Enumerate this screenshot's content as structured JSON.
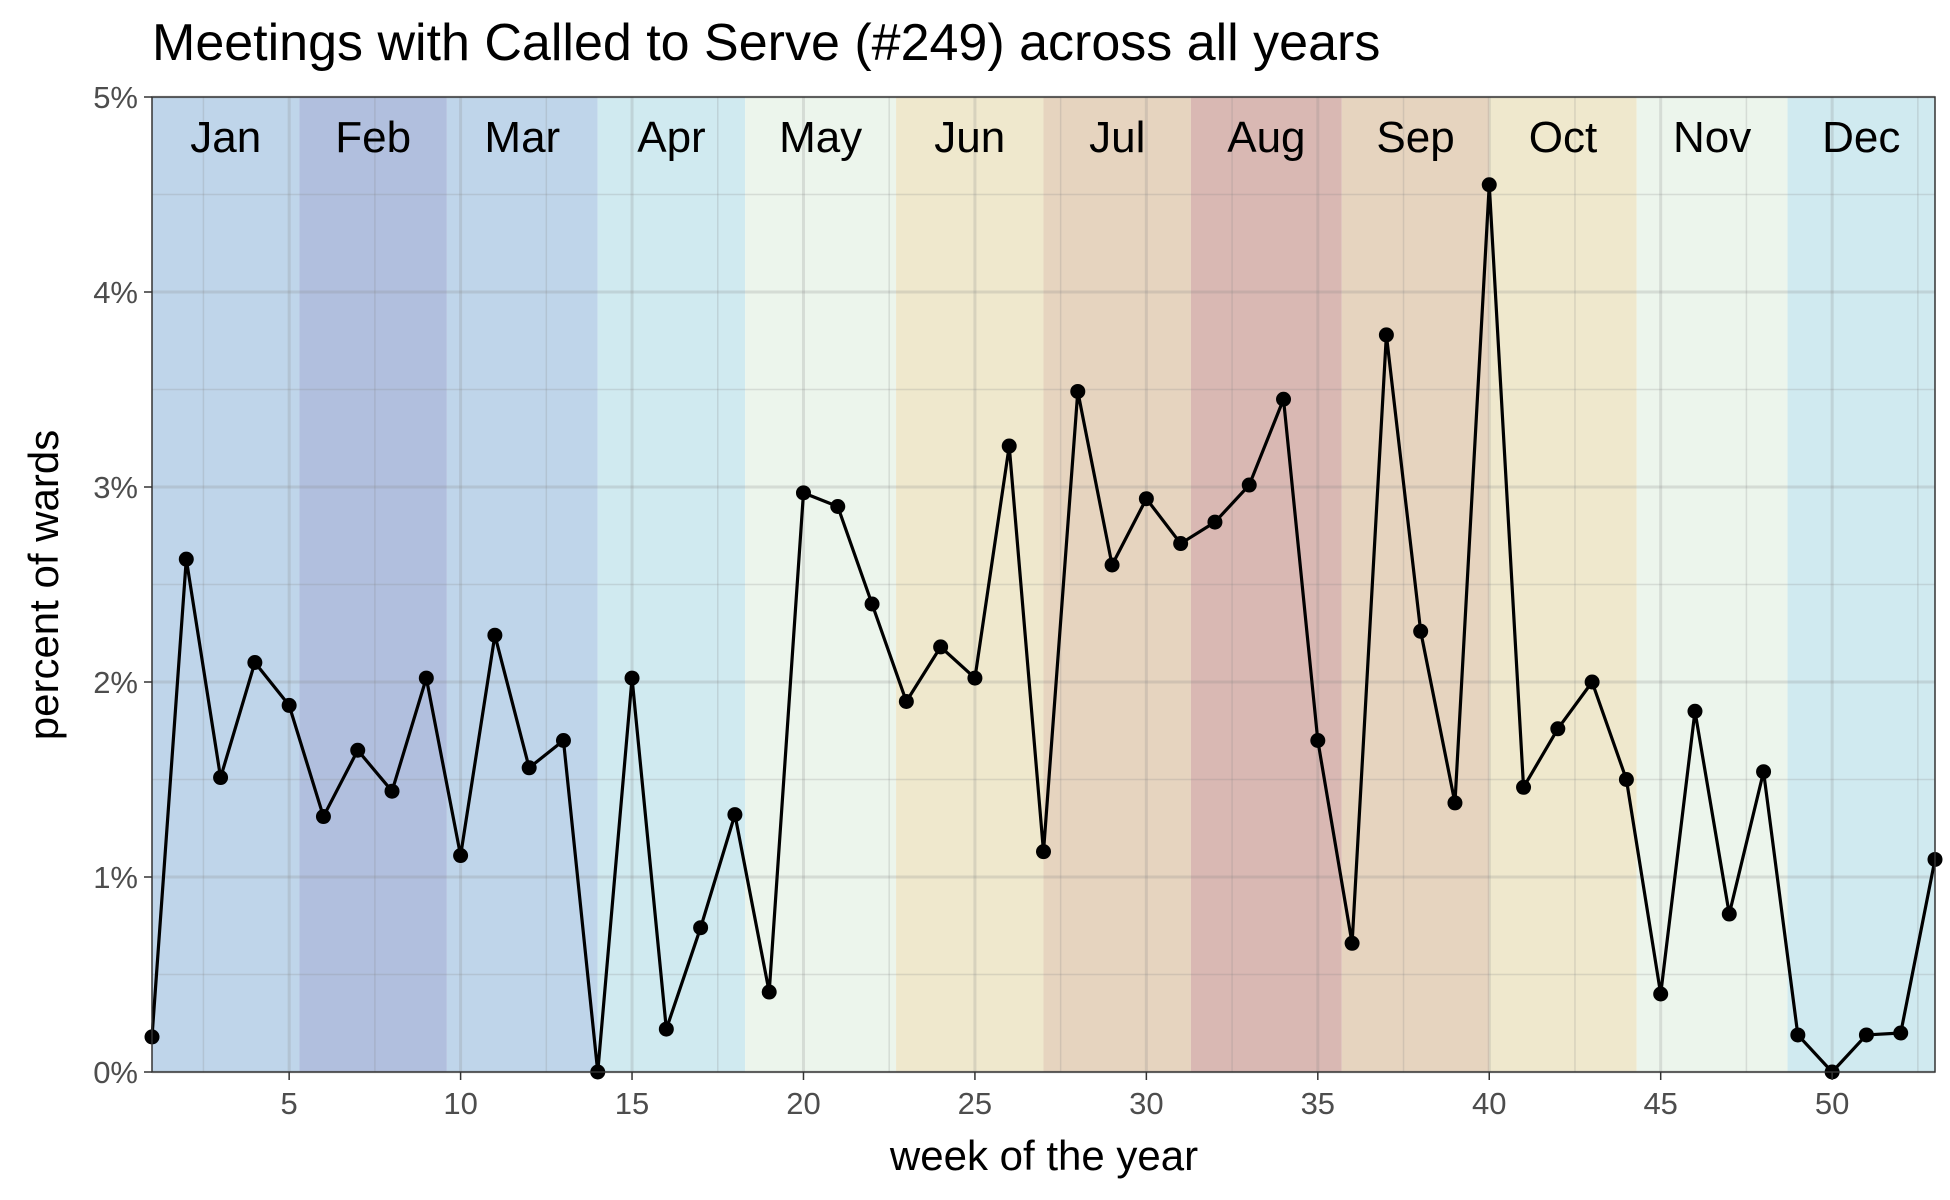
{
  "chart_data": {
    "type": "line",
    "title": "Meetings with Called to Serve (#249) across all years",
    "xlabel": "week of the year",
    "ylabel": "percent of wards",
    "xlim": [
      1,
      53
    ],
    "ylim": [
      0,
      5
    ],
    "x_ticks": [
      5,
      10,
      15,
      20,
      25,
      30,
      35,
      40,
      45,
      50
    ],
    "y_ticks": [
      "0%",
      "1%",
      "2%",
      "3%",
      "4%",
      "5%"
    ],
    "grid": true,
    "months": [
      {
        "label": "Jan",
        "start": 1,
        "end": 5.3,
        "color": "#bfd5ea"
      },
      {
        "label": "Feb",
        "start": 5.3,
        "end": 9.6,
        "color": "#b1bfde"
      },
      {
        "label": "Mar",
        "start": 9.6,
        "end": 14,
        "color": "#bfd5ea"
      },
      {
        "label": "Apr",
        "start": 14,
        "end": 18.3,
        "color": "#d0eaf0"
      },
      {
        "label": "May",
        "start": 18.3,
        "end": 22.7,
        "color": "#ecf5ec"
      },
      {
        "label": "Jun",
        "start": 22.7,
        "end": 27,
        "color": "#efe8cd"
      },
      {
        "label": "Jul",
        "start": 27,
        "end": 31.3,
        "color": "#e6d4bf"
      },
      {
        "label": "Aug",
        "start": 31.3,
        "end": 35.7,
        "color": "#d9b8b3"
      },
      {
        "label": "Sep",
        "start": 35.7,
        "end": 40,
        "color": "#e6d4bf"
      },
      {
        "label": "Oct",
        "start": 40,
        "end": 44.3,
        "color": "#efe8cd"
      },
      {
        "label": "Nov",
        "start": 44.3,
        "end": 48.7,
        "color": "#ecf5ec"
      },
      {
        "label": "Dec",
        "start": 48.7,
        "end": 53,
        "color": "#d0eaf0"
      }
    ],
    "series": [
      {
        "x": [
          1,
          2,
          3,
          4,
          5,
          6,
          7,
          8,
          9,
          10,
          11,
          12,
          13,
          14,
          15,
          16,
          17,
          18,
          19,
          20,
          21,
          22,
          23,
          24,
          25,
          26,
          27,
          28,
          29,
          30,
          31,
          32,
          33,
          34,
          35,
          36,
          37,
          38,
          39,
          40,
          41,
          42,
          43,
          44,
          45,
          46,
          47,
          48,
          49,
          50,
          51,
          52,
          53
        ],
        "values": [
          0.18,
          2.63,
          1.51,
          2.1,
          1.88,
          1.31,
          1.65,
          1.44,
          2.02,
          1.11,
          2.24,
          1.56,
          1.7,
          0.0,
          2.02,
          0.22,
          0.74,
          1.32,
          0.41,
          2.97,
          2.9,
          2.4,
          1.9,
          2.18,
          2.02,
          3.21,
          1.13,
          3.49,
          2.6,
          2.94,
          2.71,
          2.82,
          3.01,
          3.45,
          1.7,
          0.66,
          3.78,
          2.26,
          1.38,
          4.55,
          1.46,
          1.76,
          2.0,
          1.5,
          0.4,
          1.85,
          0.81,
          1.54,
          0.19,
          0.0,
          0.19,
          0.2,
          1.09
        ],
        "color": "#000000"
      }
    ]
  }
}
